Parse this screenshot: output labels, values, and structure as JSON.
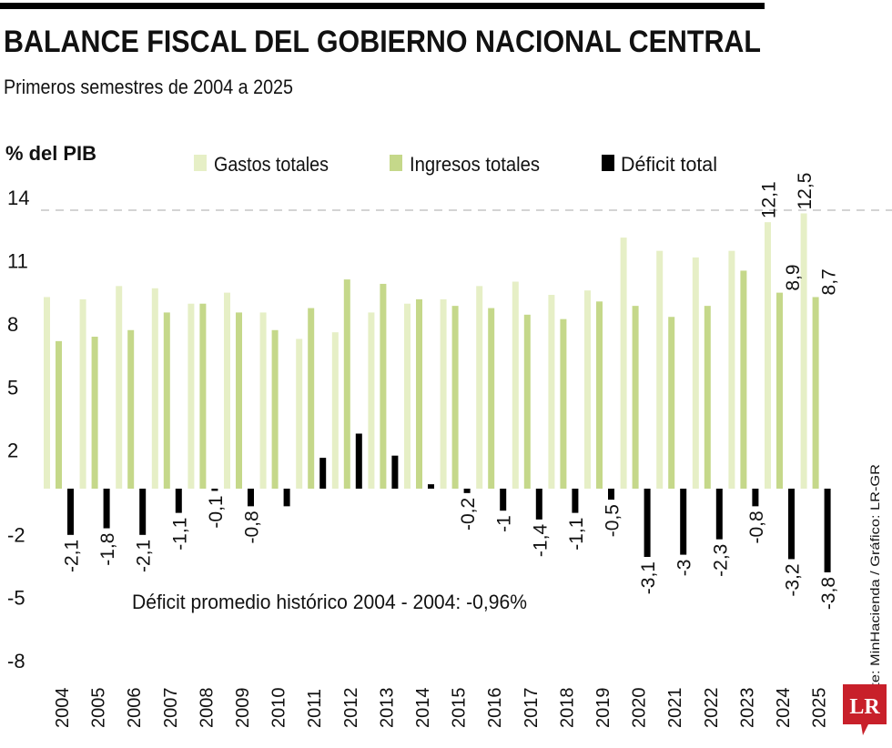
{
  "header": {
    "title": "BALANCE FISCAL DEL GOBIERNO NACIONAL CENTRAL",
    "subtitle": "Primeros semestres de 2004 a 2025"
  },
  "chart_data": {
    "type": "bar",
    "ylabel": "% del PIB",
    "yticks": [
      14,
      11,
      8,
      5,
      2,
      -2,
      -5,
      -8
    ],
    "ylim": [
      -8,
      14
    ],
    "grid": false,
    "legend_position": "top",
    "categories": [
      "2004",
      "2005",
      "2006",
      "2007",
      "2008",
      "2009",
      "2010",
      "2011",
      "2012",
      "2013",
      "2014",
      "2015",
      "2016",
      "2017",
      "2018",
      "2019",
      "2020",
      "2021",
      "2022",
      "2023",
      "2024",
      "2025"
    ],
    "series": [
      {
        "name": "Gastos totales",
        "color": "#e6efc6",
        "values": [
          8.7,
          8.6,
          9.2,
          9.1,
          8.4,
          8.9,
          8.0,
          6.8,
          7.1,
          8.0,
          8.4,
          8.6,
          9.2,
          9.4,
          8.8,
          9.0,
          11.4,
          10.8,
          10.5,
          10.8,
          12.1,
          12.5
        ]
      },
      {
        "name": "Ingresos totales",
        "color": "#c5d88a",
        "values": [
          6.7,
          6.9,
          7.2,
          8.0,
          8.4,
          8.0,
          7.2,
          8.2,
          9.5,
          9.3,
          8.6,
          8.3,
          8.2,
          7.9,
          7.7,
          8.5,
          8.3,
          7.8,
          8.3,
          9.9,
          8.9,
          8.7
        ]
      },
      {
        "name": "Déficit total",
        "color": "#000000",
        "values": [
          -2.1,
          -1.8,
          -2.1,
          -1.1,
          -0.1,
          -0.8,
          -0.8,
          1.4,
          2.5,
          1.5,
          0.2,
          -0.2,
          -1,
          -1.4,
          -1.1,
          -0.5,
          -3.1,
          -3,
          -2.3,
          -0.8,
          -3.2,
          -3.8
        ]
      }
    ],
    "data_labels": {
      "deficit": [
        "-2,1",
        "-1,8",
        "-2,1",
        "-1,1",
        "-0,1",
        "-0,8",
        "",
        "",
        "",
        "",
        "",
        "-0,2",
        "-1",
        "-1,4",
        "-1,1",
        "-0,5",
        "-3,1",
        "-3",
        "-2,3",
        "-0,8",
        "-3,2",
        "-3,8"
      ],
      "gastos": {
        "2024": "12,1",
        "2025": "12,5"
      },
      "ingresos": {
        "2024": "8,9",
        "2025": "8,7"
      }
    },
    "annotation": "Déficit promedio histórico 2004 - 2004: -0,96%"
  },
  "footer": {
    "source": "Fuente: MinHacienda / Gráfico: LR-GR",
    "logo_text": "LR",
    "logo_color": "#c8202a"
  }
}
